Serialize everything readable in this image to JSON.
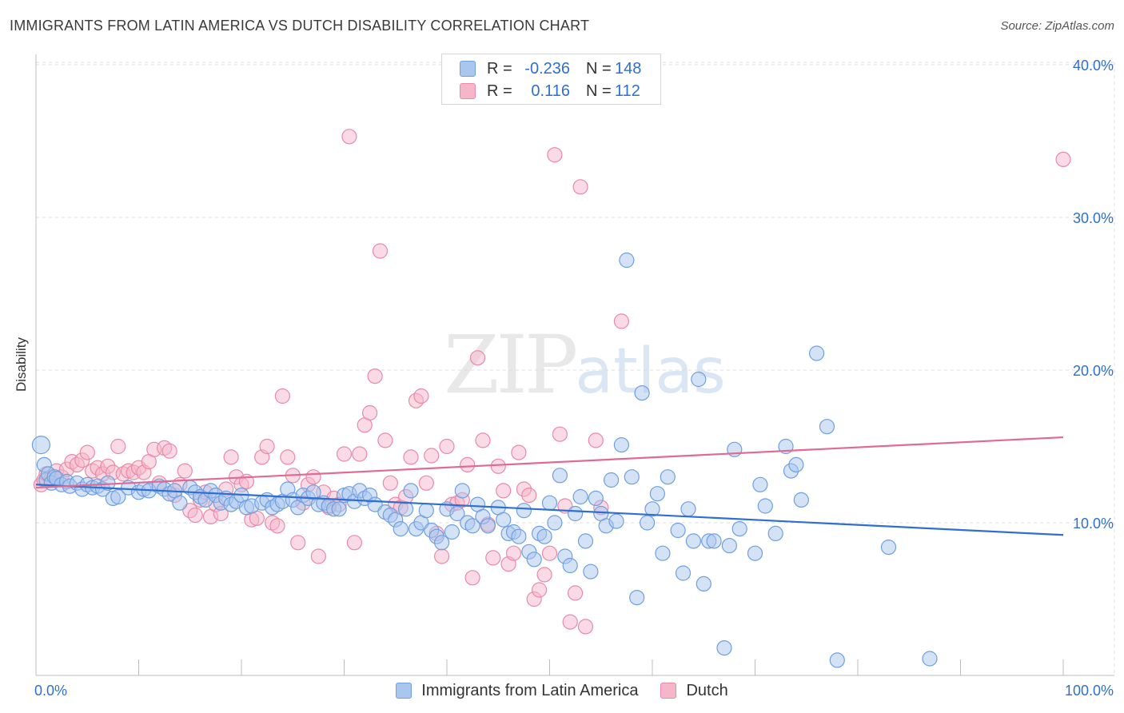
{
  "header": {
    "title": "IMMIGRANTS FROM LATIN AMERICA VS DUTCH DISABILITY CORRELATION CHART",
    "source": "Source: ZipAtlas.com"
  },
  "watermark": {
    "zip": "ZIP",
    "atlas": "atlas"
  },
  "colors": {
    "blue_fill": "#a9c6ee",
    "blue_stroke": "#6f9fe0",
    "blue_line": "#2f6fd0",
    "pink_fill": "#f5b6c9",
    "pink_stroke": "#e88aa8",
    "pink_line": "#e06a94",
    "tick_label": "#2f6fd0",
    "grid": "#dcdcdc"
  },
  "legend": {
    "rows": [
      {
        "r_label": "R =",
        "r_value": "-0.236",
        "n_label": "N =",
        "n_value": "148"
      },
      {
        "r_label": "R =",
        "r_value": "0.116",
        "n_label": "N =",
        "n_value": "112"
      }
    ]
  },
  "bottom_legend": [
    "Immigrants from Latin America",
    "Dutch"
  ],
  "chart_data": {
    "type": "scatter",
    "title": "IMMIGRANTS FROM LATIN AMERICA VS DUTCH DISABILITY CORRELATION CHART",
    "xlabel": "",
    "ylabel": "Disability",
    "xlim": [
      0,
      100
    ],
    "ylim": [
      0,
      41
    ],
    "x_tick_labels": [
      "0.0%",
      "100.0%"
    ],
    "y_ticks": [
      10,
      20,
      30,
      40
    ],
    "y_tick_labels": [
      "10.0%",
      "20.0%",
      "30.0%",
      "40.0%"
    ],
    "grid": true,
    "legend_position": "top-center",
    "series": [
      {
        "name": "Immigrants from Latin America",
        "r": -0.236,
        "n": 148,
        "trend": {
          "x": [
            0,
            100
          ],
          "y": [
            12.5,
            9.2
          ]
        },
        "points": [
          [
            0.5,
            15.1
          ],
          [
            0.8,
            13.8
          ],
          [
            1.0,
            12.8
          ],
          [
            1.2,
            13.2
          ],
          [
            1.5,
            12.6
          ],
          [
            1.8,
            13.0
          ],
          [
            2.0,
            12.9
          ],
          [
            2.5,
            12.5
          ],
          [
            3.0,
            12.7
          ],
          [
            3.3,
            12.4
          ],
          [
            4.0,
            12.6
          ],
          [
            4.5,
            12.2
          ],
          [
            5.0,
            12.5
          ],
          [
            5.5,
            12.3
          ],
          [
            6.0,
            12.4
          ],
          [
            6.5,
            12.2
          ],
          [
            7.0,
            12.6
          ],
          [
            7.5,
            11.6
          ],
          [
            8.0,
            11.7
          ],
          [
            9.0,
            12.3
          ],
          [
            10.0,
            12.0
          ],
          [
            10.5,
            12.2
          ],
          [
            11.0,
            12.1
          ],
          [
            12.0,
            12.4
          ],
          [
            12.5,
            12.2
          ],
          [
            13.0,
            11.9
          ],
          [
            13.5,
            12.1
          ],
          [
            14.0,
            11.3
          ],
          [
            15.0,
            12.3
          ],
          [
            15.5,
            12.0
          ],
          [
            16.0,
            11.7
          ],
          [
            16.5,
            11.5
          ],
          [
            17.0,
            12.1
          ],
          [
            17.5,
            11.8
          ],
          [
            18.0,
            11.3
          ],
          [
            18.5,
            11.6
          ],
          [
            19.0,
            11.2
          ],
          [
            19.5,
            11.4
          ],
          [
            20.0,
            11.8
          ],
          [
            20.5,
            11.0
          ],
          [
            21.0,
            11.1
          ],
          [
            22.0,
            11.3
          ],
          [
            22.5,
            11.5
          ],
          [
            23.0,
            11.0
          ],
          [
            23.5,
            11.2
          ],
          [
            24.0,
            11.4
          ],
          [
            24.5,
            12.2
          ],
          [
            25.0,
            11.5
          ],
          [
            25.5,
            11.0
          ],
          [
            26.0,
            11.8
          ],
          [
            26.5,
            11.6
          ],
          [
            27.0,
            12.0
          ],
          [
            27.5,
            11.2
          ],
          [
            28.0,
            11.3
          ],
          [
            28.5,
            11.1
          ],
          [
            29.0,
            10.9
          ],
          [
            29.5,
            10.9
          ],
          [
            30.0,
            11.8
          ],
          [
            30.5,
            11.9
          ],
          [
            31.0,
            11.4
          ],
          [
            31.5,
            12.1
          ],
          [
            32.0,
            11.6
          ],
          [
            32.5,
            11.8
          ],
          [
            33.0,
            11.2
          ],
          [
            34.0,
            10.7
          ],
          [
            34.5,
            10.5
          ],
          [
            35.0,
            10.2
          ],
          [
            35.5,
            9.6
          ],
          [
            36.0,
            10.9
          ],
          [
            36.5,
            12.1
          ],
          [
            37.0,
            9.6
          ],
          [
            37.5,
            10.0
          ],
          [
            38.0,
            10.8
          ],
          [
            38.5,
            9.5
          ],
          [
            39.0,
            9.1
          ],
          [
            39.5,
            8.7
          ],
          [
            40.0,
            10.9
          ],
          [
            40.5,
            9.4
          ],
          [
            41.0,
            10.6
          ],
          [
            41.5,
            12.1
          ],
          [
            42.0,
            10.0
          ],
          [
            42.5,
            9.8
          ],
          [
            43.0,
            11.2
          ],
          [
            43.5,
            10.4
          ],
          [
            44.0,
            9.8
          ],
          [
            45.0,
            11.0
          ],
          [
            45.5,
            10.2
          ],
          [
            46.0,
            9.3
          ],
          [
            46.5,
            9.4
          ],
          [
            47.0,
            9.1
          ],
          [
            47.5,
            10.8
          ],
          [
            48.0,
            8.1
          ],
          [
            48.5,
            7.6
          ],
          [
            49.0,
            9.3
          ],
          [
            49.5,
            9.1
          ],
          [
            50.0,
            11.3
          ],
          [
            50.5,
            10.0
          ],
          [
            51.0,
            13.1
          ],
          [
            51.5,
            7.8
          ],
          [
            52.0,
            7.2
          ],
          [
            52.5,
            10.6
          ],
          [
            53.0,
            11.7
          ],
          [
            53.5,
            8.8
          ],
          [
            54.0,
            6.8
          ],
          [
            54.5,
            11.6
          ],
          [
            55.0,
            10.6
          ],
          [
            55.5,
            9.8
          ],
          [
            56.0,
            12.8
          ],
          [
            56.5,
            10.1
          ],
          [
            57.0,
            15.1
          ],
          [
            57.5,
            27.2
          ],
          [
            58.0,
            13.0
          ],
          [
            58.5,
            5.1
          ],
          [
            59.0,
            18.5
          ],
          [
            59.5,
            10.0
          ],
          [
            60.0,
            10.9
          ],
          [
            60.5,
            11.9
          ],
          [
            61.0,
            8.0
          ],
          [
            61.5,
            13.0
          ],
          [
            62.5,
            9.5
          ],
          [
            63.0,
            6.7
          ],
          [
            63.5,
            10.9
          ],
          [
            64.0,
            8.8
          ],
          [
            64.5,
            19.4
          ],
          [
            65.0,
            6.0
          ],
          [
            65.5,
            8.8
          ],
          [
            66.0,
            8.8
          ],
          [
            67.0,
            1.8
          ],
          [
            67.5,
            8.5
          ],
          [
            68.0,
            14.8
          ],
          [
            68.5,
            9.6
          ],
          [
            70.0,
            8.0
          ],
          [
            70.5,
            12.5
          ],
          [
            71.0,
            11.1
          ],
          [
            72.0,
            9.3
          ],
          [
            73.0,
            15.0
          ],
          [
            73.5,
            13.4
          ],
          [
            74.0,
            13.8
          ],
          [
            74.5,
            11.5
          ],
          [
            76.0,
            21.1
          ],
          [
            77.0,
            16.3
          ],
          [
            78.0,
            1.0
          ],
          [
            83.0,
            8.4
          ],
          [
            87.0,
            1.1
          ]
        ]
      },
      {
        "name": "Dutch",
        "r": 0.116,
        "n": 112,
        "trend": {
          "x": [
            0,
            100
          ],
          "y": [
            12.3,
            15.6
          ]
        },
        "points": [
          [
            0.5,
            12.5
          ],
          [
            0.8,
            12.8
          ],
          [
            1.0,
            13.2
          ],
          [
            1.5,
            12.9
          ],
          [
            2.0,
            13.4
          ],
          [
            2.5,
            13.0
          ],
          [
            3.0,
            13.5
          ],
          [
            3.5,
            14.0
          ],
          [
            4.0,
            13.8
          ],
          [
            4.5,
            14.1
          ],
          [
            5.0,
            14.6
          ],
          [
            5.5,
            13.4
          ],
          [
            6.0,
            13.6
          ],
          [
            6.5,
            13.2
          ],
          [
            7.0,
            13.7
          ],
          [
            7.5,
            13.3
          ],
          [
            8.0,
            15.0
          ],
          [
            8.5,
            13.2
          ],
          [
            9.0,
            13.4
          ],
          [
            9.5,
            13.3
          ],
          [
            10.0,
            13.6
          ],
          [
            10.5,
            13.3
          ],
          [
            11.0,
            14.0
          ],
          [
            11.5,
            14.8
          ],
          [
            12.0,
            12.6
          ],
          [
            12.5,
            14.9
          ],
          [
            13.0,
            14.7
          ],
          [
            13.5,
            11.8
          ],
          [
            14.0,
            12.5
          ],
          [
            14.5,
            13.4
          ],
          [
            15.0,
            10.8
          ],
          [
            15.5,
            10.5
          ],
          [
            16.0,
            11.5
          ],
          [
            16.5,
            12.0
          ],
          [
            17.0,
            10.4
          ],
          [
            17.5,
            11.2
          ],
          [
            18.0,
            10.6
          ],
          [
            18.5,
            12.2
          ],
          [
            19.0,
            14.3
          ],
          [
            19.5,
            13.0
          ],
          [
            20.0,
            12.5
          ],
          [
            20.5,
            12.7
          ],
          [
            21.0,
            10.2
          ],
          [
            21.5,
            10.3
          ],
          [
            22.0,
            14.3
          ],
          [
            22.5,
            15.0
          ],
          [
            23.0,
            10.0
          ],
          [
            23.5,
            9.8
          ],
          [
            24.0,
            18.3
          ],
          [
            24.5,
            14.3
          ],
          [
            25.0,
            13.1
          ],
          [
            25.5,
            8.7
          ],
          [
            26.0,
            11.3
          ],
          [
            26.5,
            12.5
          ],
          [
            27.0,
            13.0
          ],
          [
            27.5,
            7.8
          ],
          [
            28.0,
            12.0
          ],
          [
            28.5,
            11.0
          ],
          [
            29.0,
            11.6
          ],
          [
            29.5,
            11.2
          ],
          [
            30.0,
            14.5
          ],
          [
            30.5,
            35.3
          ],
          [
            31.0,
            8.7
          ],
          [
            31.5,
            14.5
          ],
          [
            32.0,
            16.4
          ],
          [
            32.5,
            17.2
          ],
          [
            33.0,
            19.6
          ],
          [
            33.5,
            27.8
          ],
          [
            34.0,
            15.4
          ],
          [
            34.5,
            12.6
          ],
          [
            35.0,
            11.2
          ],
          [
            35.5,
            11.0
          ],
          [
            36.0,
            11.7
          ],
          [
            36.5,
            14.3
          ],
          [
            37.0,
            18.0
          ],
          [
            37.5,
            18.3
          ],
          [
            38.0,
            12.6
          ],
          [
            38.5,
            14.4
          ],
          [
            39.0,
            9.3
          ],
          [
            39.5,
            7.8
          ],
          [
            40.0,
            15.0
          ],
          [
            40.5,
            11.2
          ],
          [
            41.0,
            11.3
          ],
          [
            41.5,
            11.5
          ],
          [
            42.0,
            13.8
          ],
          [
            42.5,
            6.4
          ],
          [
            43.0,
            20.8
          ],
          [
            43.5,
            15.4
          ],
          [
            44.0,
            9.9
          ],
          [
            44.5,
            7.7
          ],
          [
            45.0,
            13.7
          ],
          [
            45.5,
            12.1
          ],
          [
            46.0,
            7.3
          ],
          [
            46.5,
            8.0
          ],
          [
            47.0,
            14.6
          ],
          [
            47.5,
            12.2
          ],
          [
            48.0,
            11.8
          ],
          [
            48.5,
            5.0
          ],
          [
            49.0,
            5.6
          ],
          [
            49.5,
            6.6
          ],
          [
            50.0,
            8.0
          ],
          [
            50.5,
            34.1
          ],
          [
            51.0,
            15.8
          ],
          [
            51.5,
            11.1
          ],
          [
            52.0,
            3.5
          ],
          [
            52.5,
            5.4
          ],
          [
            53.0,
            32.0
          ],
          [
            53.5,
            3.2
          ],
          [
            54.5,
            15.4
          ],
          [
            55.0,
            11.0
          ],
          [
            57.0,
            23.2
          ],
          [
            100.0,
            33.8
          ]
        ]
      }
    ]
  }
}
